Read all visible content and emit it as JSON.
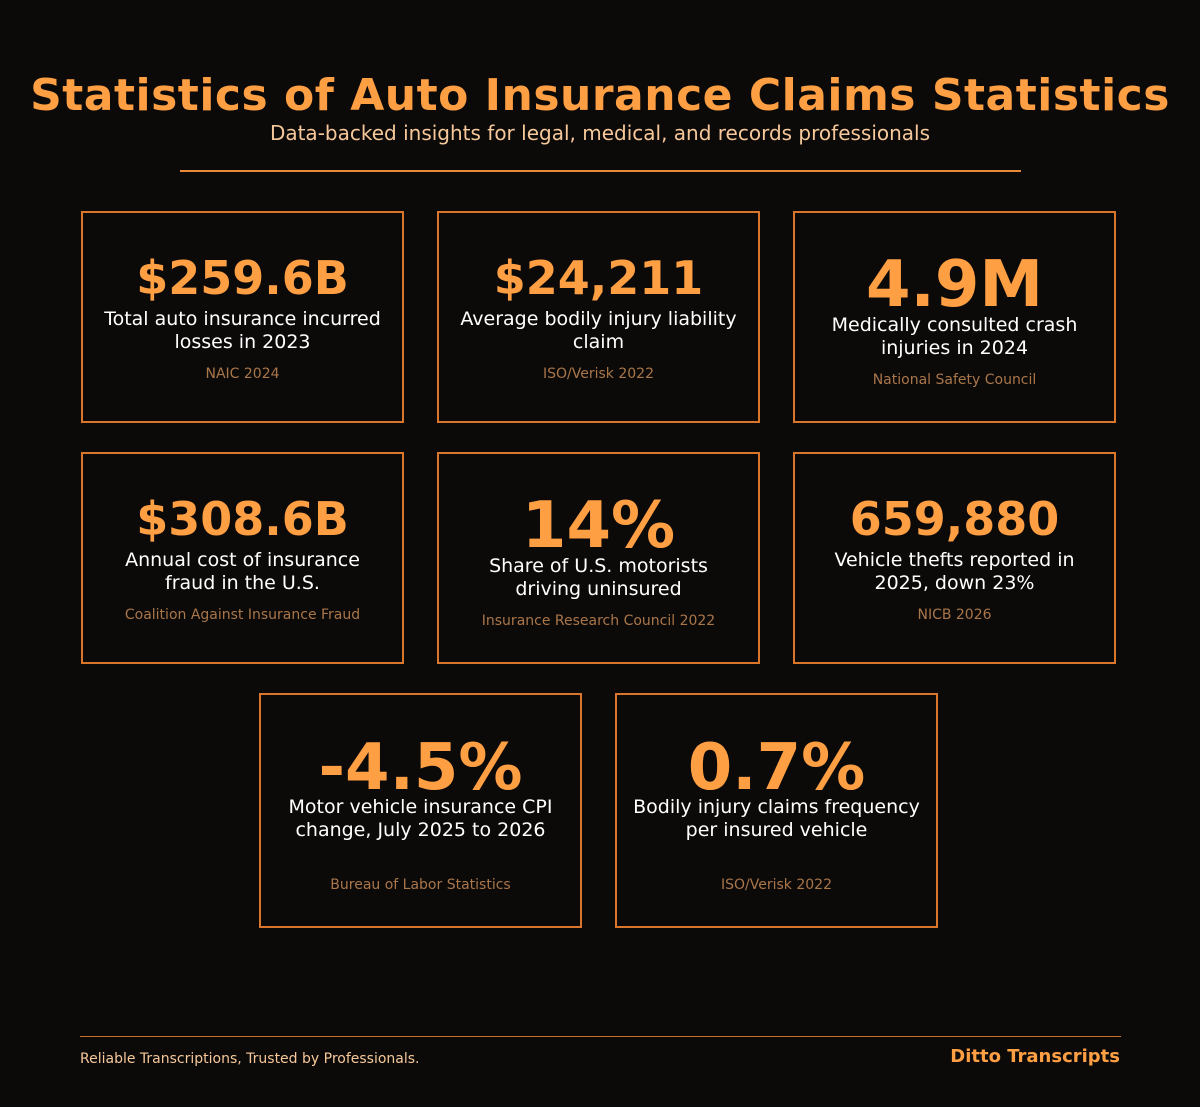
{
  "header": {
    "title": "Statistics of Auto Insurance Claims Statistics",
    "subtitle": "Data-backed insights for legal, medical, and records professionals"
  },
  "stats": [
    {
      "value": "$259.6B",
      "label": "Total auto insurance incurred losses in 2023",
      "source": "NAIC 2024"
    },
    {
      "value": "$24,211",
      "label": "Average bodily injury liability claim",
      "source": "ISO/Verisk 2022"
    },
    {
      "value": "4.9M",
      "label": "Medically consulted crash injuries in 2024",
      "source": "National Safety Council"
    },
    {
      "value": "$308.6B",
      "label": "Annual cost of insurance fraud in the U.S.",
      "source": "Coalition Against Insurance Fraud"
    },
    {
      "value": "14%",
      "label": "Share of U.S. motorists driving uninsured",
      "source": "Insurance Research Council 2022"
    },
    {
      "value": "659,880",
      "label": "Vehicle thefts reported in 2025, down 23%",
      "source": "NICB 2026"
    },
    {
      "value": "-4.5%",
      "label": "Motor vehicle insurance CPI change, July 2025 to 2026",
      "source": "Bureau of Labor Statistics"
    },
    {
      "value": "0.7%",
      "label": "Bodily injury claims frequency per insured vehicle",
      "source": "ISO/Verisk 2022"
    }
  ],
  "footer": {
    "tagline": "Reliable Transcriptions, Trusted by Professionals.",
    "brand": "Ditto Transcripts"
  },
  "colors": {
    "background": "#0c0a09",
    "accent": "#ff9f43",
    "border": "#d9762c",
    "source_text": "#a9764a",
    "subtitle_text": "#f6c89a"
  }
}
